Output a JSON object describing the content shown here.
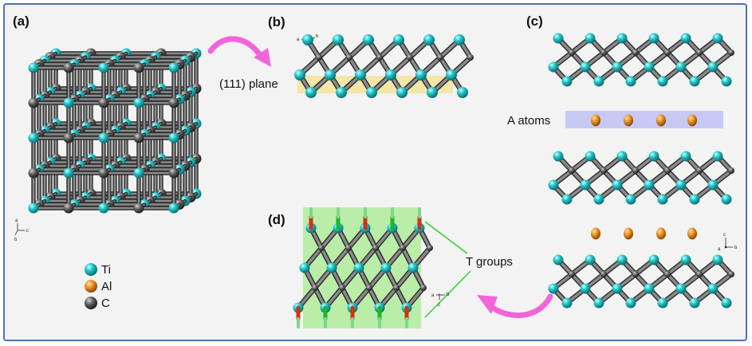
{
  "panels": {
    "a": {
      "label": "(a)"
    },
    "b": {
      "label": "(b)",
      "plane_label": "(111) plane"
    },
    "c": {
      "label": "(c)",
      "layer_label": "A atoms"
    },
    "d": {
      "label": "(d)",
      "group_label": "T groups"
    }
  },
  "legend": [
    {
      "symbol": "Ti",
      "color": "#21c4c8"
    },
    {
      "symbol": "Al",
      "color": "#e88a1c"
    },
    {
      "symbol": "C",
      "color": "#505050"
    }
  ],
  "axes": {
    "a": [
      "a",
      "b",
      "c"
    ],
    "b": [
      "a",
      "b"
    ],
    "c": [
      "c",
      "a",
      "b"
    ],
    "d": [
      "a",
      "b",
      "c"
    ]
  },
  "colors": {
    "ti": "#21c4c8",
    "al": "#e88a1c",
    "c": "#505050",
    "plane_highlight": "#f3e29a",
    "a_layer_band": "#c8c8f4",
    "t_group_box": "#b4eca0",
    "arrow": "#f065d8",
    "t_group_lines": "#2fd030",
    "frame_border": "#4a74b4"
  }
}
